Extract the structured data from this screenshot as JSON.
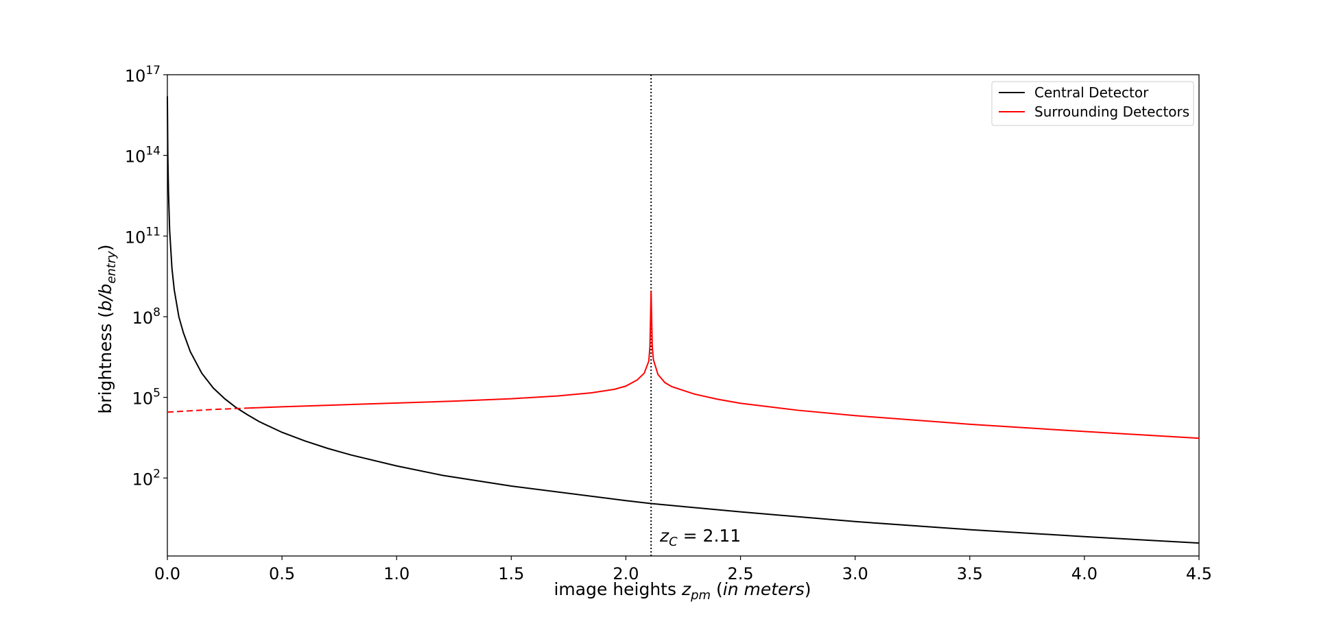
{
  "chart_data": {
    "type": "line",
    "xlabel_prefix": "image heights ",
    "xlabel_var": "z",
    "xlabel_var_sub": "pm",
    "xlabel_open": " (",
    "xlabel_unit": "in meters",
    "xlabel_close": ")",
    "ylabel_prefix": "brightness (",
    "ylabel_var": "b/b",
    "ylabel_var_sub": "entry",
    "ylabel_close": ")",
    "xlim": [
      0.0,
      4.5
    ],
    "ylim_log10": [
      -0.9,
      17
    ],
    "y_scale": "log",
    "x_ticks": [
      "0.0",
      "0.5",
      "1.0",
      "1.5",
      "2.0",
      "2.5",
      "3.0",
      "3.5",
      "4.0",
      "4.5"
    ],
    "x_tick_values": [
      0.0,
      0.5,
      1.0,
      1.5,
      2.0,
      2.5,
      3.0,
      3.5,
      4.0,
      4.5
    ],
    "y_ticks_base": "10",
    "y_tick_exponents": [
      "2",
      "5",
      "8",
      "11",
      "14",
      "17"
    ],
    "y_tick_values": [
      2,
      5,
      8,
      11,
      14,
      17
    ],
    "critical_line": {
      "x": 2.11,
      "style": "dotted",
      "label_var": "z",
      "label_sub": "C",
      "label_rest": " = 2.11"
    },
    "series": [
      {
        "name": "Central Detector",
        "color": "#000000",
        "style": "solid",
        "x": [
          0.0,
          0.002,
          0.005,
          0.01,
          0.02,
          0.03,
          0.05,
          0.07,
          0.1,
          0.15,
          0.2,
          0.25,
          0.3,
          0.35,
          0.4,
          0.5,
          0.6,
          0.7,
          0.8,
          1.0,
          1.2,
          1.5,
          2.0,
          2.11,
          2.5,
          3.0,
          3.5,
          4.0,
          4.5
        ],
        "y_log10": [
          16.2,
          14.0,
          12.6,
          11.2,
          9.8,
          9.0,
          8.0,
          7.4,
          6.7,
          5.9,
          5.35,
          4.95,
          4.62,
          4.35,
          4.1,
          3.7,
          3.38,
          3.1,
          2.86,
          2.45,
          2.1,
          1.7,
          1.16,
          1.05,
          0.74,
          0.38,
          0.08,
          -0.18,
          -0.42
        ]
      },
      {
        "name": "Surrounding Detectors",
        "color": "#ff0000",
        "style": "solid",
        "dashed_until_x": 0.35,
        "x": [
          0.0,
          0.1,
          0.2,
          0.35,
          0.5,
          0.75,
          1.0,
          1.25,
          1.5,
          1.7,
          1.85,
          1.95,
          2.0,
          2.05,
          2.08,
          2.1,
          2.105,
          2.11,
          2.115,
          2.12,
          2.14,
          2.17,
          2.2,
          2.3,
          2.4,
          2.5,
          2.75,
          3.0,
          3.5,
          4.0,
          4.5
        ],
        "y_log10": [
          4.45,
          4.5,
          4.55,
          4.6,
          4.65,
          4.72,
          4.79,
          4.86,
          4.95,
          5.05,
          5.17,
          5.3,
          5.42,
          5.65,
          5.9,
          6.35,
          6.9,
          8.95,
          6.9,
          6.4,
          5.85,
          5.55,
          5.4,
          5.12,
          4.93,
          4.78,
          4.52,
          4.32,
          4.0,
          3.73,
          3.48
        ]
      }
    ],
    "legend": "top-right"
  }
}
